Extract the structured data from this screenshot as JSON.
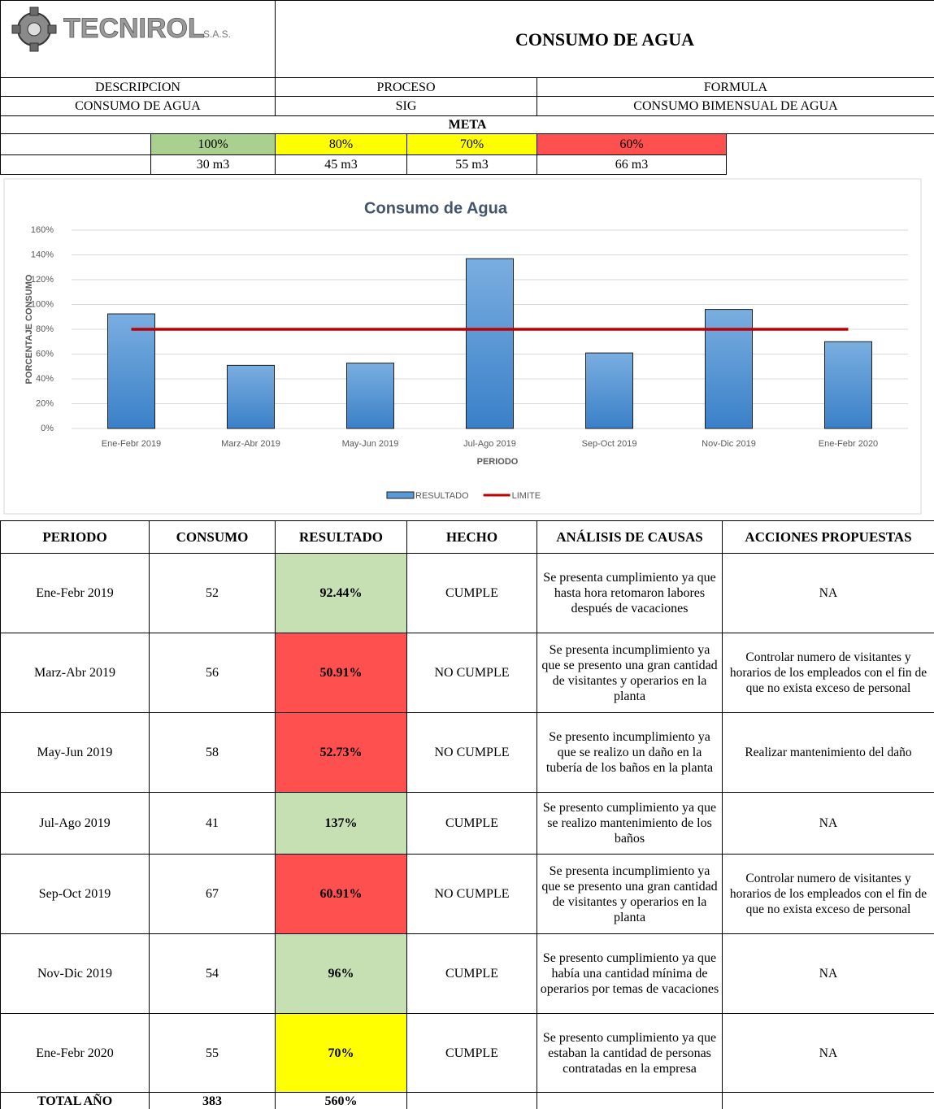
{
  "header": {
    "logo_name": "TECNIROL",
    "logo_suffix": "S.A.S.",
    "title": "CONSUMO DE AGUA",
    "labels": [
      "DESCRIPCION",
      "PROCESO",
      "FORMULA"
    ],
    "values": [
      "CONSUMO DE AGUA",
      "SIG",
      "CONSUMO BIMENSUAL DE AGUA"
    ]
  },
  "meta": {
    "title": "META",
    "levels": [
      {
        "percent": "100%",
        "volume": "30 m3",
        "color": "#a9d08e"
      },
      {
        "percent": "80%",
        "volume": "45 m3",
        "color": "#ffff00"
      },
      {
        "percent": "70%",
        "volume": "55 m3",
        "color": "#ffff00"
      },
      {
        "percent": "60%",
        "volume": "66 m3",
        "color": "#ff5050"
      }
    ]
  },
  "chart_data": {
    "type": "bar",
    "title": "Consumo de Agua",
    "x_label": "PERIODO",
    "y_label": "PORCENTAJE CONSUMO",
    "categories": [
      "Ene-Febr 2019",
      "Marz-Abr 2019",
      "May-Jun 2019",
      "Jul-Ago 2019",
      "Sep-Oct 2019",
      "Nov-Dic 2019",
      "Ene-Febr 2020"
    ],
    "series": [
      {
        "name": "RESULTADO",
        "color": "#5b9bd5",
        "values": [
          92.44,
          50.91,
          52.73,
          137,
          60.91,
          96,
          70
        ]
      },
      {
        "name": "LIMITE",
        "type": "line",
        "color": "#c00000",
        "values": [
          80,
          80,
          80,
          80,
          80,
          80,
          80
        ]
      }
    ],
    "ylim": [
      0,
      160
    ],
    "yticks": [
      {
        "value": 0,
        "label": "0%"
      },
      {
        "value": 20,
        "label": "20%"
      },
      {
        "value": 40,
        "label": "40%"
      },
      {
        "value": 60,
        "label": "60%"
      },
      {
        "value": 80,
        "label": "80%"
      },
      {
        "value": 100,
        "label": "100%"
      },
      {
        "value": 120,
        "label": "120%"
      },
      {
        "value": 140,
        "label": "140%"
      },
      {
        "value": 160,
        "label": "160%"
      }
    ],
    "grid": true,
    "legend": "bottom"
  },
  "table": {
    "columns": [
      "PERIODO",
      "CONSUMO",
      "RESULTADO",
      "HECHO",
      "ANÁLISIS DE CAUSAS",
      "ACCIONES PROPUESTAS"
    ],
    "rows": [
      {
        "periodo": "Ene-Febr 2019",
        "consumo": 52,
        "resultado": "92.44%",
        "hecho": "CUMPLE",
        "analisis": "Se presenta cumplimiento ya que hasta hora retomaron labores después de vacaciones",
        "acciones": "NA",
        "color": "#c6e0b4"
      },
      {
        "periodo": "Marz-Abr 2019",
        "consumo": 56,
        "resultado": "50.91%",
        "hecho": "NO CUMPLE",
        "analisis": "Se presenta incumplimiento ya que se presento una gran cantidad de visitantes y operarios en la planta",
        "acciones": "Controlar numero de visitantes y horarios de los empleados con el fin de que no exista exceso de personal",
        "color": "#ff5050"
      },
      {
        "periodo": "May-Jun 2019",
        "consumo": 58,
        "resultado": "52.73%",
        "hecho": "NO CUMPLE",
        "analisis": "Se presento incumplimiento ya que se realizo un daño en la tubería de los baños en la planta",
        "acciones": "Realizar mantenimiento del daño",
        "color": "#ff5050"
      },
      {
        "periodo": "Jul-Ago 2019",
        "consumo": 41,
        "resultado": "137%",
        "hecho": "CUMPLE",
        "analisis": "Se presento cumplimiento ya que se realizo mantenimiento de los baños",
        "acciones": "NA",
        "color": "#c6e0b4"
      },
      {
        "periodo": "Sep-Oct 2019",
        "consumo": 67,
        "resultado": "60.91%",
        "hecho": "NO CUMPLE",
        "analisis": "Se presenta incumplimiento ya que se presento una gran cantidad de visitantes y operarios en la planta",
        "acciones": "Controlar numero de visitantes y horarios de los empleados con el fin de que no exista exceso de personal",
        "color": "#ff5050"
      },
      {
        "periodo": "Nov-Dic 2019",
        "consumo": 54,
        "resultado": "96%",
        "hecho": "CUMPLE",
        "analisis": "Se presento cumplimiento ya que había una cantidad mínima de operarios por temas de vacaciones",
        "acciones": "NA",
        "color": "#c6e0b4"
      },
      {
        "periodo": "Ene-Febr 2020",
        "consumo": 55,
        "resultado": "70%",
        "hecho": "CUMPLE",
        "analisis": "Se presento cumplimiento ya que estaban la cantidad de personas contratadas en la empresa",
        "acciones": "NA",
        "color": "#ffff00"
      }
    ],
    "total": {
      "label": "TOTAL AÑO",
      "consumo": 383,
      "resultado": "560%"
    }
  }
}
